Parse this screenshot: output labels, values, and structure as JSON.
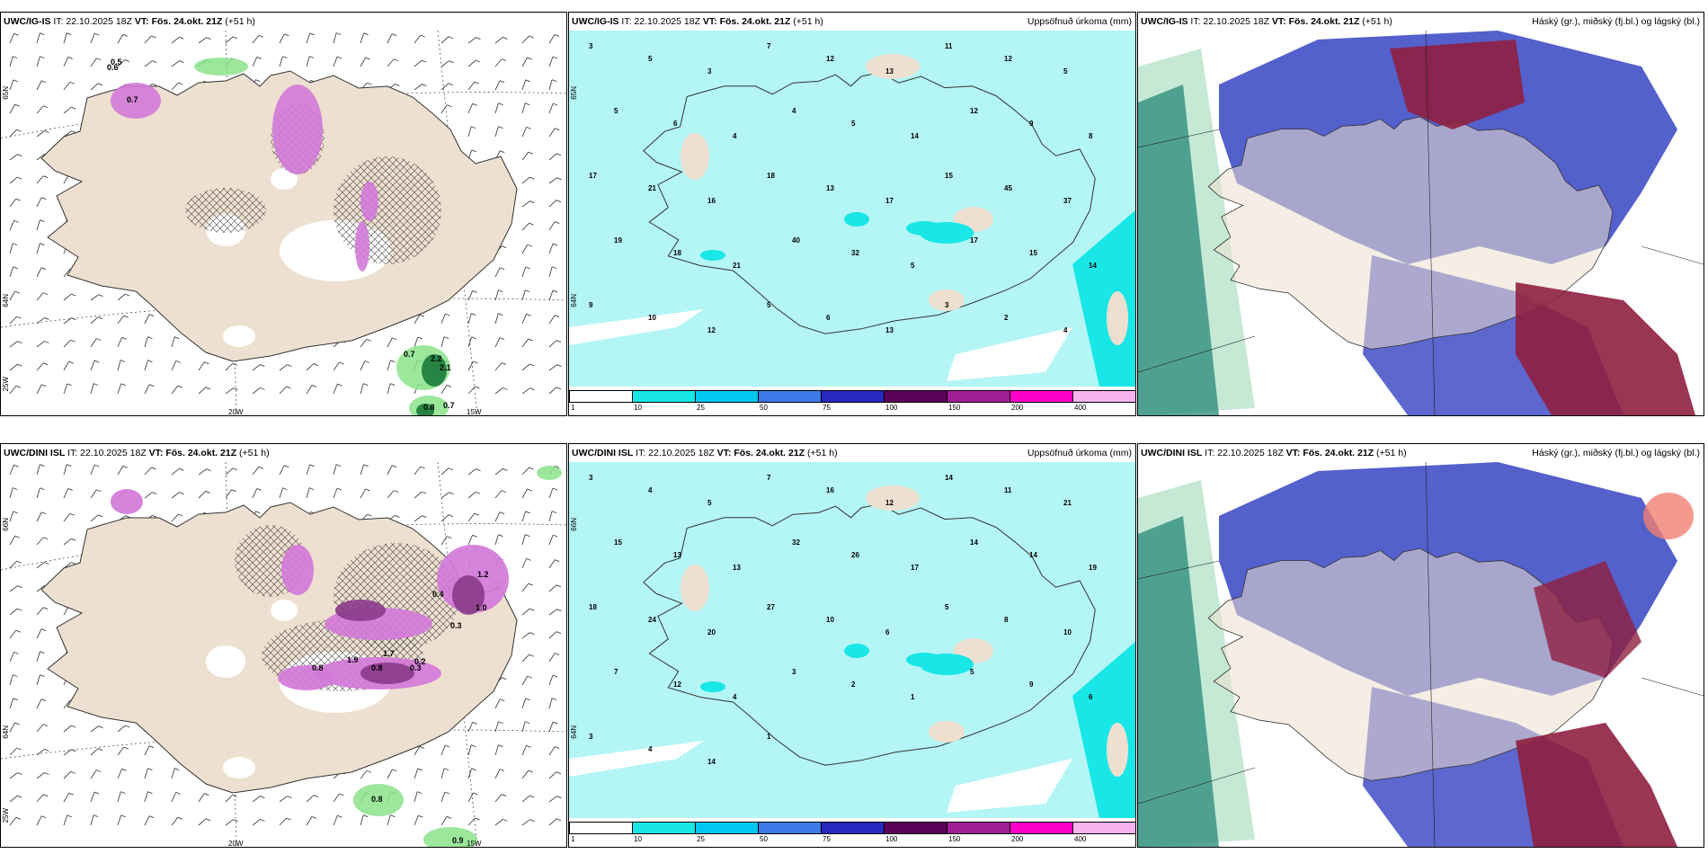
{
  "colors": {
    "land": "#eee0d0",
    "sea": "#b4f5f5",
    "coast": "#333333",
    "precip_light": "#b4f5f5",
    "precip_mid": "#19e6e6",
    "snow": "#d27ad8",
    "snow_dark": "#8a3a8a",
    "rain": "#8be38b",
    "rain_dark": "#1a7a3a",
    "cloud_high": "#c0e7d0",
    "cloud_mid": "#4b57c8",
    "cloud_low": "#8f1f40"
  },
  "common": {
    "issue": "IT: 22.10.2025 18Z",
    "valid_label": "VT: Fös. 24.okt. 21Z",
    "lead": "(+51 h)"
  },
  "rows": [
    {
      "model": "UWC/IG-IS",
      "wind_panel": {
        "axis": {
          "lat_top": "65N",
          "lat_mid": "64N",
          "lon_left": "25W",
          "lon_a": "20W",
          "lon_b": "15W"
        },
        "values": [
          "0.5",
          "0.6",
          "0.7",
          "0.7",
          "2.2",
          "2.1",
          "0.8",
          "0.7"
        ]
      },
      "precip_panel": {
        "right_title": "Uppsöfnuð úrkoma (mm)",
        "axis": {
          "lat_top": "65N",
          "lat_mid": "64N"
        },
        "values": [
          "3",
          "5",
          "3",
          "7",
          "12",
          "13",
          "11",
          "12",
          "5",
          "5",
          "6",
          "4",
          "4",
          "5",
          "14",
          "12",
          "9",
          "8",
          "17",
          "21",
          "16",
          "18",
          "13",
          "17",
          "15",
          "45",
          "37",
          "19",
          "18",
          "21",
          "40",
          "32",
          "5",
          "17",
          "15",
          "14",
          "9",
          "10",
          "12",
          "5",
          "6",
          "13",
          "3",
          "2",
          "4"
        ]
      },
      "cloud_panel": {
        "right_title": "Háský (gr.), miðský (fj.bl.) og lágský (bl.)"
      }
    },
    {
      "model": "UWC/DINI ISL",
      "wind_panel": {
        "axis": {
          "lat_top": "66N",
          "lat_mid": "64N",
          "lon_left": "25W",
          "lon_a": "20W",
          "lon_b": "15W"
        },
        "values": [
          "0.8",
          "0.9",
          "1.2",
          "0.3",
          "0.4",
          "0.2",
          "0.3",
          "0.8",
          "1.9",
          "1.7",
          "0.8",
          "1.0"
        ]
      },
      "precip_panel": {
        "right_title": "Uppsöfnuð úrkoma (mm)",
        "axis": {
          "lat_top": "66N",
          "lat_mid": "64N"
        },
        "values": [
          "3",
          "4",
          "5",
          "7",
          "16",
          "12",
          "14",
          "11",
          "21",
          "15",
          "13",
          "13",
          "32",
          "26",
          "17",
          "14",
          "14",
          "19",
          "18",
          "24",
          "20",
          "27",
          "10",
          "6",
          "5",
          "8",
          "10",
          "7",
          "12",
          "4",
          "3",
          "2",
          "1",
          "5",
          "9",
          "6",
          "3",
          "4",
          "14",
          "1"
        ]
      },
      "cloud_panel": {
        "right_title": "Háský (gr.), miðský (fj.bl.) og lágský (bl.)"
      }
    }
  ],
  "colorbar": {
    "ticks": [
      "1",
      "10",
      "25",
      "50",
      "75",
      "100",
      "150",
      "200",
      "400"
    ],
    "colors": [
      "#ffffff",
      "#19e6e6",
      "#00c8f0",
      "#3c78e6",
      "#2828be",
      "#5a005a",
      "#a01e96",
      "#ff00c8",
      "#f5b4f0"
    ]
  }
}
